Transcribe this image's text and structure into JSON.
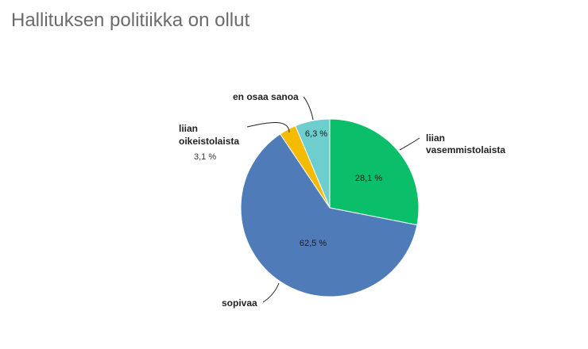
{
  "chart_data": {
    "type": "pie",
    "title": "Hallituksen politiikka on ollut",
    "slices": [
      {
        "label": "liian vasemmistolaista",
        "value": 28.1,
        "value_label": "28,1 %",
        "color": "#0bbf6a"
      },
      {
        "label": "sopivaa",
        "value": 62.5,
        "value_label": "62,5 %",
        "color": "#4f7cb8"
      },
      {
        "label": "liian oikeistolaista",
        "value": 3.1,
        "value_label": "3,1 %",
        "color": "#f5bb00"
      },
      {
        "label": "en osaa sanoa",
        "value": 6.3,
        "value_label": "6,3 %",
        "color": "#6ecdcd"
      }
    ],
    "start_angle_deg": 0,
    "direction": "clockwise"
  }
}
